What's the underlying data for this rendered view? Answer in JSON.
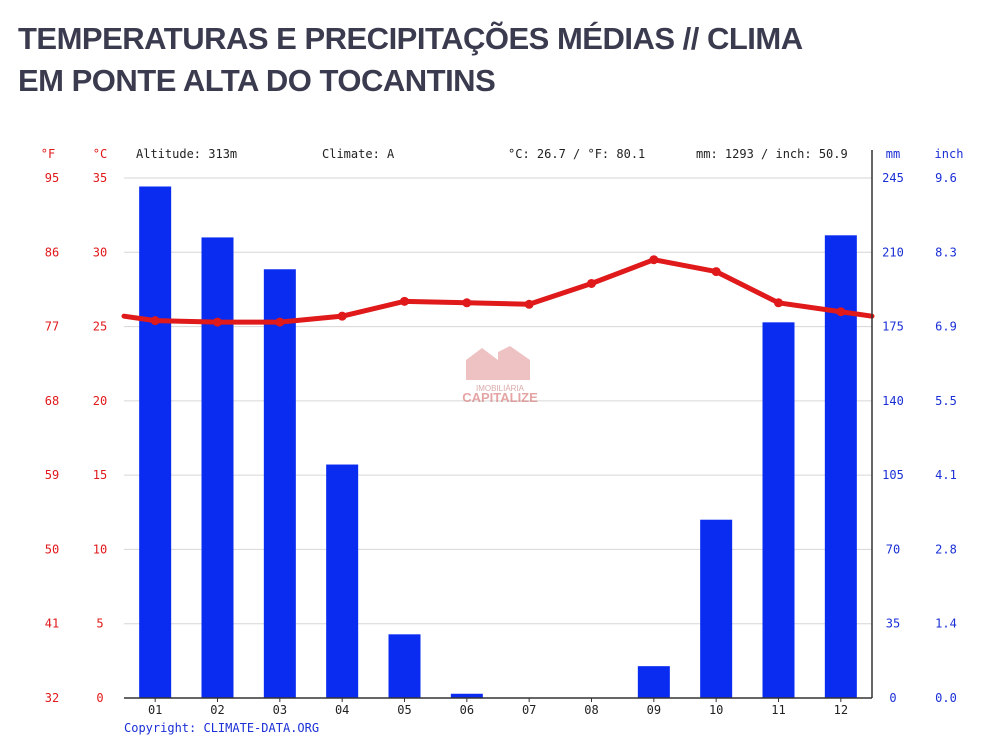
{
  "title": {
    "line1": "TEMPERATURAS E PRECIPITAÇÕES MÉDIAS // CLIMA",
    "line2": "EM PONTE ALTA DO TOCANTINS"
  },
  "header": {
    "unit_f": "°F",
    "unit_c": "°C",
    "altitude": "Altitude: 313m",
    "climate": "Climate: A",
    "temp_summary": "°C: 26.7 / °F: 80.1",
    "precip_summary": "mm: 1293 / inch: 50.9",
    "unit_mm": "mm",
    "unit_inch": "inch"
  },
  "copyright": "Copyright: CLIMATE-DATA.ORG",
  "watermark": {
    "line1": "IMOBILIÁRIA",
    "line2": "CAPITALIZE"
  },
  "colors": {
    "temperature": "#e0191b",
    "precipitation": "#0a2bf0",
    "left_axis_text": "#e0191b",
    "right_axis_text": "#1a2fd6"
  },
  "chart_data": {
    "type": "bar+line",
    "categories": [
      "01",
      "02",
      "03",
      "04",
      "05",
      "06",
      "07",
      "08",
      "09",
      "10",
      "11",
      "12"
    ],
    "left_axis_f_ticks": [
      "32",
      "41",
      "50",
      "59",
      "68",
      "77",
      "86",
      "95"
    ],
    "left_axis_c_ticks": [
      "0",
      "5",
      "10",
      "15",
      "20",
      "25",
      "30",
      "35"
    ],
    "right_axis_mm_ticks": [
      "0",
      "35",
      "70",
      "105",
      "140",
      "175",
      "210",
      "245"
    ],
    "right_axis_inch_ticks": [
      "0.0",
      "1.4",
      "2.8",
      "4.1",
      "5.5",
      "6.9",
      "8.3",
      "9.6"
    ],
    "c_range": [
      0,
      35
    ],
    "mm_range": [
      0,
      245
    ],
    "precipitation_mm": [
      241,
      217,
      202,
      110,
      30,
      2,
      0,
      0,
      15,
      84,
      177,
      218
    ],
    "temperature_c": [
      25.4,
      25.3,
      25.3,
      25.7,
      26.7,
      26.6,
      26.5,
      27.9,
      29.5,
      28.7,
      26.6,
      26.0
    ],
    "temperature_edge_start_c": 25.7,
    "temperature_edge_end_c": 25.7,
    "grid": true
  }
}
